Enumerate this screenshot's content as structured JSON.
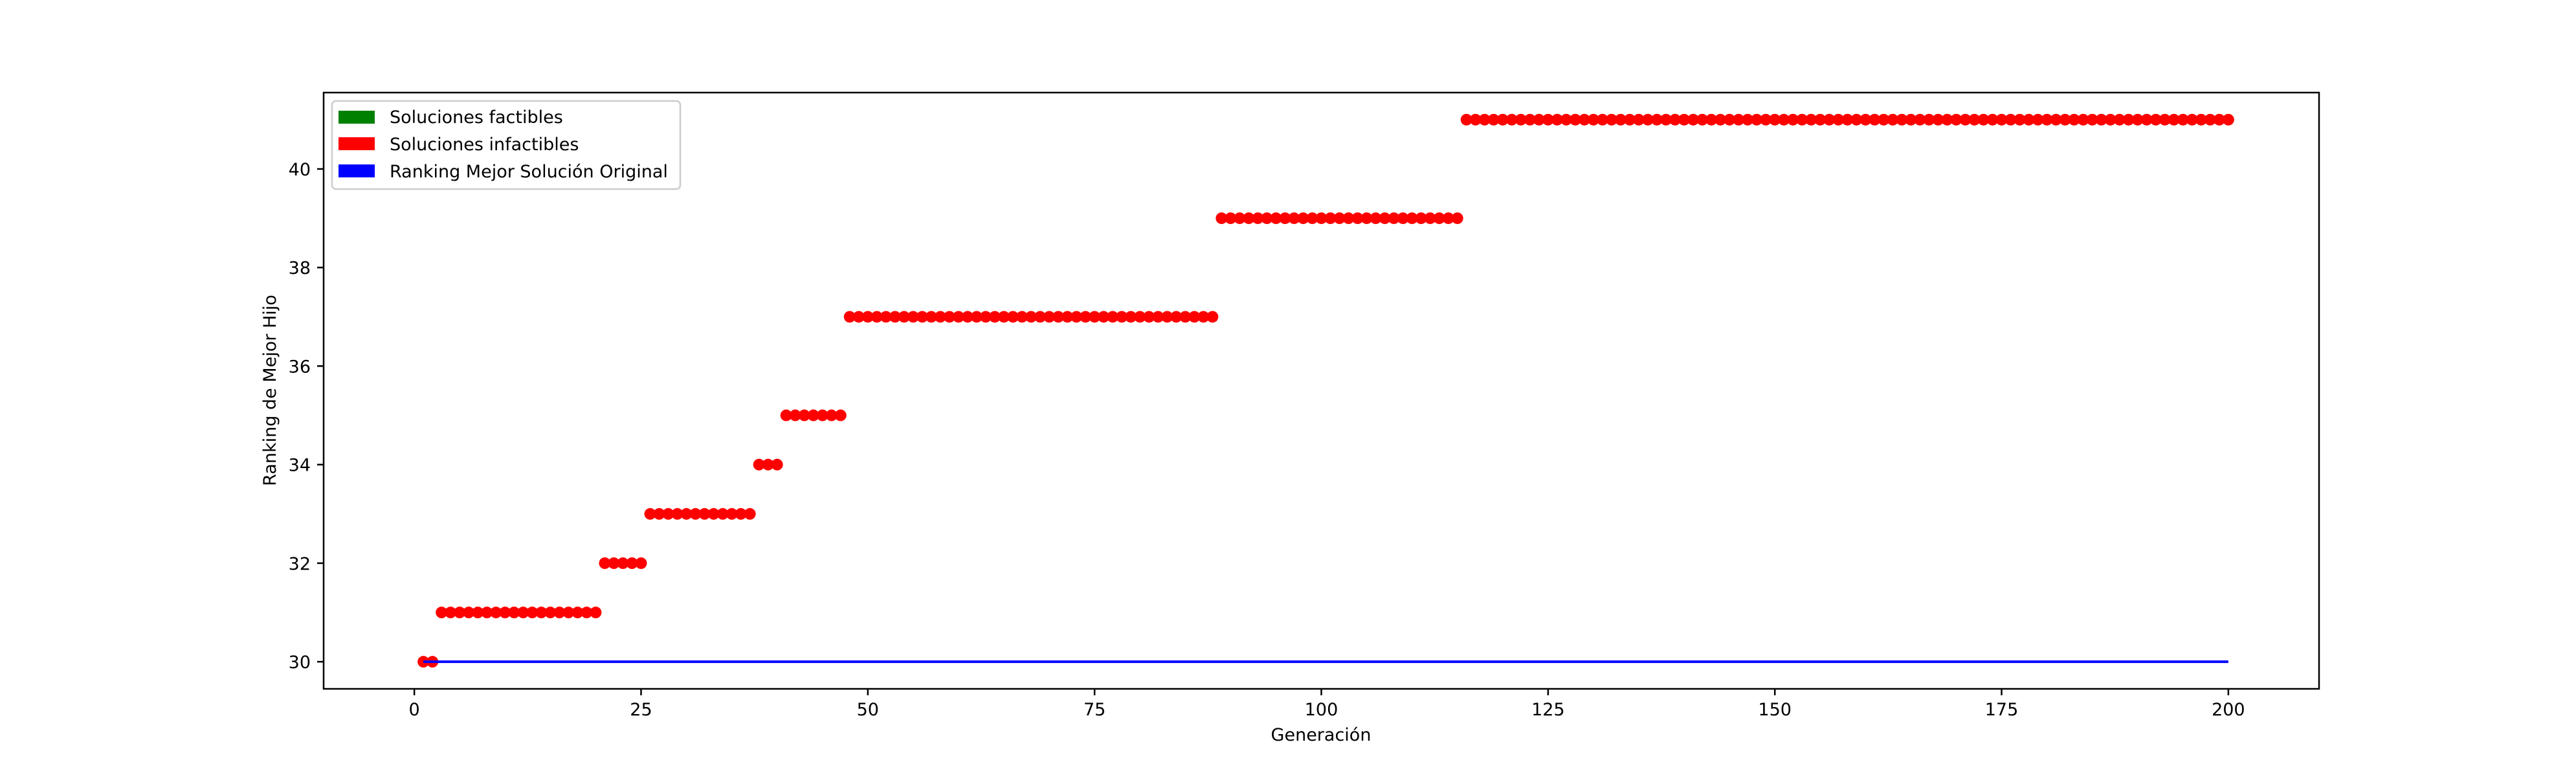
{
  "chart_data": {
    "type": "scatter",
    "title": "",
    "xlabel": "Generación",
    "ylabel": "Ranking de Mejor Hijo",
    "xlim": [
      -10,
      210
    ],
    "ylim": [
      29.45,
      41.55
    ],
    "xticks": [
      0,
      25,
      50,
      75,
      100,
      125,
      150,
      175,
      200
    ],
    "yticks": [
      30,
      32,
      34,
      36,
      38,
      40
    ],
    "grid": false,
    "legend_position": "top-left",
    "legend": [
      {
        "label": "Soluciones factibles",
        "color": "#008000"
      },
      {
        "label": "Soluciones infactibles",
        "color": "#ff0000"
      },
      {
        "label": "Ranking Mejor Solución Original",
        "color": "#0000ff"
      }
    ],
    "series": [
      {
        "name": "Soluciones infactibles",
        "color": "#ff0000",
        "kind": "points",
        "segments": [
          {
            "x_start": 1,
            "x_end": 2,
            "y": 30
          },
          {
            "x_start": 3,
            "x_end": 20,
            "y": 31
          },
          {
            "x_start": 21,
            "x_end": 25,
            "y": 32
          },
          {
            "x_start": 26,
            "x_end": 37,
            "y": 33
          },
          {
            "x_start": 38,
            "x_end": 40,
            "y": 34
          },
          {
            "x_start": 41,
            "x_end": 47,
            "y": 35
          },
          {
            "x_start": 48,
            "x_end": 88,
            "y": 37
          },
          {
            "x_start": 89,
            "x_end": 115,
            "y": 39
          },
          {
            "x_start": 116,
            "x_end": 200,
            "y": 41
          }
        ]
      },
      {
        "name": "Ranking Mejor Solución Original",
        "color": "#0000ff",
        "kind": "line",
        "x": [
          1,
          200
        ],
        "y": [
          30,
          30
        ]
      }
    ]
  }
}
